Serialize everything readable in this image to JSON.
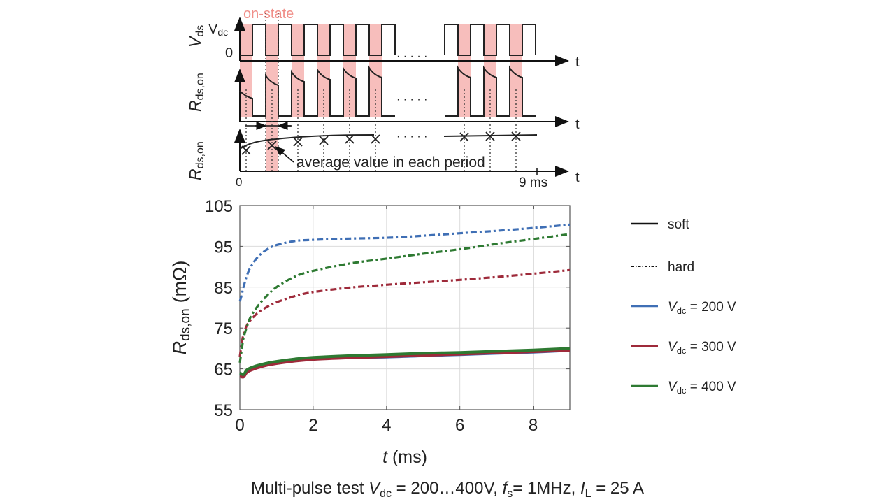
{
  "schematic": {
    "on_state_label": "on-state",
    "vds_axis_label": "V",
    "vds_axis_sub": "ds",
    "vdc_tick_label": "V",
    "vdc_tick_sub": "dc",
    "zero_tick_label": "0",
    "rds_axis_label": "R",
    "rds_axis_sub": "ds,on",
    "time_axis_label": "t",
    "dots_label": "· · · · ·",
    "annotation": "average value in each period",
    "t_start_label": "0",
    "t_end_label": "9 ms",
    "on_state_color": "#f6b3b0"
  },
  "chart_data": {
    "type": "line",
    "title": "",
    "xlabel_italic": "t",
    "xlabel_rest": " (ms)",
    "ylabel_main": "R",
    "ylabel_sub": "ds,on",
    "ylabel_unit": "(mΩ)",
    "xlim": [
      0,
      9
    ],
    "ylim": [
      55,
      105
    ],
    "xticks": [
      0,
      2,
      4,
      6,
      8
    ],
    "yticks": [
      55,
      65,
      75,
      85,
      95,
      105
    ],
    "grid": true,
    "legend_placement": "right-outside",
    "series": [
      {
        "name": "hard, Vdc = 200 V",
        "style": "dashdot",
        "color": "#3f6fb5",
        "x": [
          0,
          0.05,
          0.1,
          0.2,
          0.3,
          0.5,
          0.75,
          1.0,
          1.5,
          2,
          3,
          4,
          5,
          6,
          7,
          8,
          9
        ],
        "y": [
          81.5,
          83,
          85,
          88,
          90,
          92.5,
          94.3,
          95.3,
          96.3,
          96.6,
          96.9,
          97.1,
          97.6,
          98.2,
          98.8,
          99.5,
          100.3
        ]
      },
      {
        "name": "hard, Vdc = 300 V",
        "style": "dashdot",
        "color": "#9e2a3a",
        "x": [
          0,
          0.05,
          0.1,
          0.2,
          0.3,
          0.5,
          0.75,
          1.0,
          1.5,
          2,
          3,
          4,
          5,
          6,
          7,
          8,
          9
        ],
        "y": [
          68,
          71,
          73.5,
          75.8,
          77,
          78.8,
          80.2,
          81.3,
          82.8,
          83.8,
          84.9,
          85.6,
          86.2,
          86.8,
          87.5,
          88.3,
          89.2
        ]
      },
      {
        "name": "hard, Vdc = 400 V",
        "style": "dashdot",
        "color": "#2e7a32",
        "x": [
          0,
          0.05,
          0.1,
          0.2,
          0.3,
          0.5,
          0.75,
          1.0,
          1.5,
          2,
          3,
          4,
          5,
          6,
          7,
          8,
          9
        ],
        "y": [
          66.5,
          69.5,
          72.5,
          75.5,
          77.8,
          80.5,
          83,
          85,
          87.6,
          89,
          90.8,
          92,
          93.2,
          94.3,
          95.6,
          96.8,
          98
        ]
      },
      {
        "name": "soft, Vdc = 200 V",
        "style": "solid",
        "color": "#3f6fb5",
        "x": [
          0,
          0.1,
          0.2,
          0.4,
          0.7,
          1,
          1.5,
          2,
          3,
          4,
          5,
          6,
          7,
          8,
          9
        ],
        "y": [
          63.8,
          63.4,
          64.5,
          65.3,
          66,
          66.5,
          67.1,
          67.5,
          67.8,
          67.9,
          68.2,
          68.5,
          68.8,
          69.1,
          69.5
        ]
      },
      {
        "name": "soft, Vdc = 300 V",
        "style": "solid",
        "color": "#9e2a3a",
        "x": [
          0,
          0.1,
          0.2,
          0.4,
          0.7,
          1,
          1.5,
          2,
          3,
          4,
          5,
          6,
          7,
          8,
          9
        ],
        "y": [
          63.2,
          63.0,
          64.2,
          65.0,
          65.8,
          66.3,
          66.9,
          67.3,
          67.7,
          68.0,
          68.3,
          68.6,
          68.9,
          69.2,
          69.5
        ]
      },
      {
        "name": "soft, Vdc = 400 V",
        "style": "solid",
        "color": "#2e7a32",
        "x": [
          0,
          0.1,
          0.2,
          0.4,
          0.7,
          1,
          1.5,
          2,
          3,
          4,
          5,
          6,
          7,
          8,
          9
        ],
        "y": [
          64.0,
          63.6,
          64.8,
          65.6,
          66.3,
          66.8,
          67.4,
          67.8,
          68.2,
          68.5,
          68.8,
          69.0,
          69.3,
          69.6,
          70.0
        ]
      }
    ],
    "legend": [
      {
        "label": "soft",
        "style": "solid",
        "color": "#111111"
      },
      {
        "label": "hard",
        "style": "dashdot",
        "color": "#111111"
      },
      {
        "label_italic": "V",
        "label_sub": "dc",
        "label_rest": " = 200 V",
        "style": "solid",
        "color": "#3f6fb5"
      },
      {
        "label_italic": "V",
        "label_sub": "dc",
        "label_rest": " = 300 V",
        "style": "solid",
        "color": "#9e2a3a"
      },
      {
        "label_italic": "V",
        "label_sub": "dc",
        "label_rest": " = 400 V",
        "style": "solid",
        "color": "#2e7a32"
      }
    ]
  },
  "caption": {
    "prefix": "Multi-pulse test ",
    "v_italic": "V",
    "v_sub": "dc",
    "v_rest": " = 200…400V, ",
    "f_italic": "f",
    "f_sub": "s",
    "f_rest": "= 1MHz, ",
    "i_italic": "I",
    "i_sub": "L",
    "i_rest": " = 25 A"
  }
}
